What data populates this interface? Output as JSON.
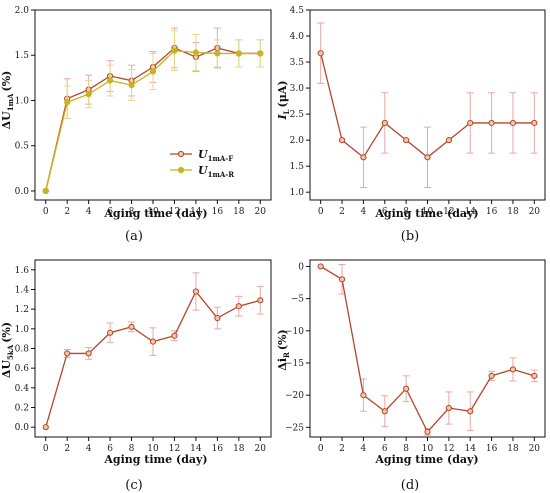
{
  "colors": {
    "series_f": "#b5462a",
    "series_r": "#c9b31e",
    "marker_fill": "#f0c8a8",
    "error_f": "#e9a9a6",
    "error_r": "#e6d88a",
    "axis": "#111111"
  },
  "chart_data": [
    {
      "panel": "(a)",
      "type": "line",
      "xlabel": "Aging time (day)",
      "ylabel_main": "ΔU",
      "ylabel_sub": "1mA",
      "ylabel_unit": "(%)",
      "xlim": [
        -1,
        21
      ],
      "ylim": [
        -0.1,
        2.0
      ],
      "xticks": [
        0,
        2,
        4,
        6,
        8,
        10,
        12,
        14,
        16,
        18,
        20
      ],
      "yticks": [
        0.0,
        0.5,
        1.0,
        1.5,
        2.0
      ],
      "ytick_labels": [
        "0.0",
        "0.5",
        "1.0",
        "1.5",
        "2.0"
      ],
      "legend": {
        "placement": "center-right"
      },
      "series": [
        {
          "name": "U1mA-F",
          "name_main": "U",
          "name_sub": "1mA-F",
          "color_key": "series_f",
          "x": [
            0,
            2,
            4,
            6,
            8,
            10,
            12,
            14,
            16,
            18,
            20
          ],
          "y": [
            0.0,
            1.02,
            1.12,
            1.27,
            1.22,
            1.37,
            1.58,
            1.48,
            1.58,
            1.52,
            1.52
          ],
          "err": [
            0.0,
            0.22,
            0.16,
            0.17,
            0.17,
            0.17,
            0.22,
            0.16,
            0.22,
            0.15,
            0.15
          ]
        },
        {
          "name": "U1mA-R",
          "name_main": "U",
          "name_sub": "1mA-R",
          "color_key": "series_r",
          "x": [
            0,
            2,
            4,
            6,
            8,
            10,
            12,
            14,
            16,
            18,
            20
          ],
          "y": [
            0.0,
            0.98,
            1.07,
            1.22,
            1.17,
            1.32,
            1.55,
            1.53,
            1.52,
            1.52,
            1.52
          ],
          "err": [
            0.0,
            0.18,
            0.15,
            0.17,
            0.17,
            0.2,
            0.22,
            0.2,
            0.15,
            0.15,
            0.15
          ]
        }
      ]
    },
    {
      "panel": "(b)",
      "type": "line",
      "xlabel": "Aging time (day)",
      "ylabel_main": "I",
      "ylabel_sub": "L",
      "ylabel_unit": "(μA)",
      "xlim": [
        -1,
        21
      ],
      "ylim": [
        0.85,
        4.5
      ],
      "xticks": [
        0,
        2,
        4,
        6,
        8,
        10,
        12,
        14,
        16,
        18,
        20
      ],
      "yticks": [
        1.0,
        1.5,
        2.0,
        2.5,
        3.0,
        3.5,
        4.0,
        4.5
      ],
      "ytick_labels": [
        "1.0",
        "1.5",
        "2.0",
        "2.5",
        "3.0",
        "3.5",
        "4.0",
        "4.5"
      ],
      "series": [
        {
          "color_key": "series_f",
          "x": [
            0,
            2,
            4,
            6,
            8,
            10,
            12,
            14,
            16,
            18,
            20
          ],
          "y": [
            3.67,
            2.0,
            1.67,
            2.33,
            2.0,
            1.67,
            2.0,
            2.33,
            2.33,
            2.33,
            2.33
          ],
          "err": [
            0.58,
            0.0,
            0.58,
            0.58,
            0.0,
            0.58,
            0.0,
            0.58,
            0.58,
            0.58,
            0.58
          ]
        }
      ]
    },
    {
      "panel": "(c)",
      "type": "line",
      "xlabel": "Aging time (day)",
      "ylabel_main": "ΔU",
      "ylabel_sub": "5kA",
      "ylabel_unit": "(%)",
      "xlim": [
        -1,
        21
      ],
      "ylim": [
        -0.1,
        1.7
      ],
      "xticks": [
        0,
        2,
        4,
        6,
        8,
        10,
        12,
        14,
        16,
        18,
        20
      ],
      "yticks": [
        0.0,
        0.2,
        0.4,
        0.6,
        0.8,
        1.0,
        1.2,
        1.4,
        1.6
      ],
      "ytick_labels": [
        "0.0",
        "0.2",
        "0.4",
        "0.6",
        "0.8",
        "1.0",
        "1.2",
        "1.4",
        "1.6"
      ],
      "series": [
        {
          "color_key": "series_f",
          "x": [
            0,
            2,
            4,
            6,
            8,
            10,
            12,
            14,
            16,
            18,
            20
          ],
          "y": [
            0.0,
            0.75,
            0.75,
            0.96,
            1.02,
            0.87,
            0.93,
            1.38,
            1.11,
            1.23,
            1.29
          ],
          "err": [
            0.0,
            0.04,
            0.06,
            0.1,
            0.05,
            0.14,
            0.05,
            0.19,
            0.11,
            0.1,
            0.14
          ]
        }
      ]
    },
    {
      "panel": "(d)",
      "type": "line",
      "xlabel": "Aging time (day)",
      "ylabel_main": "Δi",
      "ylabel_sub": "R",
      "ylabel_unit": "(%)",
      "xlim": [
        -1,
        21
      ],
      "ylim": [
        -26.5,
        1.0
      ],
      "xticks": [
        0,
        2,
        4,
        6,
        8,
        10,
        12,
        14,
        16,
        18,
        20
      ],
      "yticks": [
        0,
        -5,
        -10,
        -15,
        -20,
        -25
      ],
      "ytick_labels": [
        "0",
        "−5",
        "−10",
        "−15",
        "−20",
        "−25"
      ],
      "series": [
        {
          "color_key": "series_f",
          "x": [
            0,
            2,
            4,
            6,
            8,
            10,
            12,
            14,
            16,
            18,
            20
          ],
          "y": [
            0.0,
            -2.0,
            -20.0,
            -22.5,
            -19.0,
            -25.7,
            -22.0,
            -22.5,
            -17.0,
            -16.0,
            -17.0
          ],
          "err": [
            0.0,
            2.3,
            2.5,
            2.4,
            2.0,
            0.5,
            2.5,
            3.0,
            0.7,
            1.8,
            0.9
          ]
        }
      ]
    }
  ]
}
